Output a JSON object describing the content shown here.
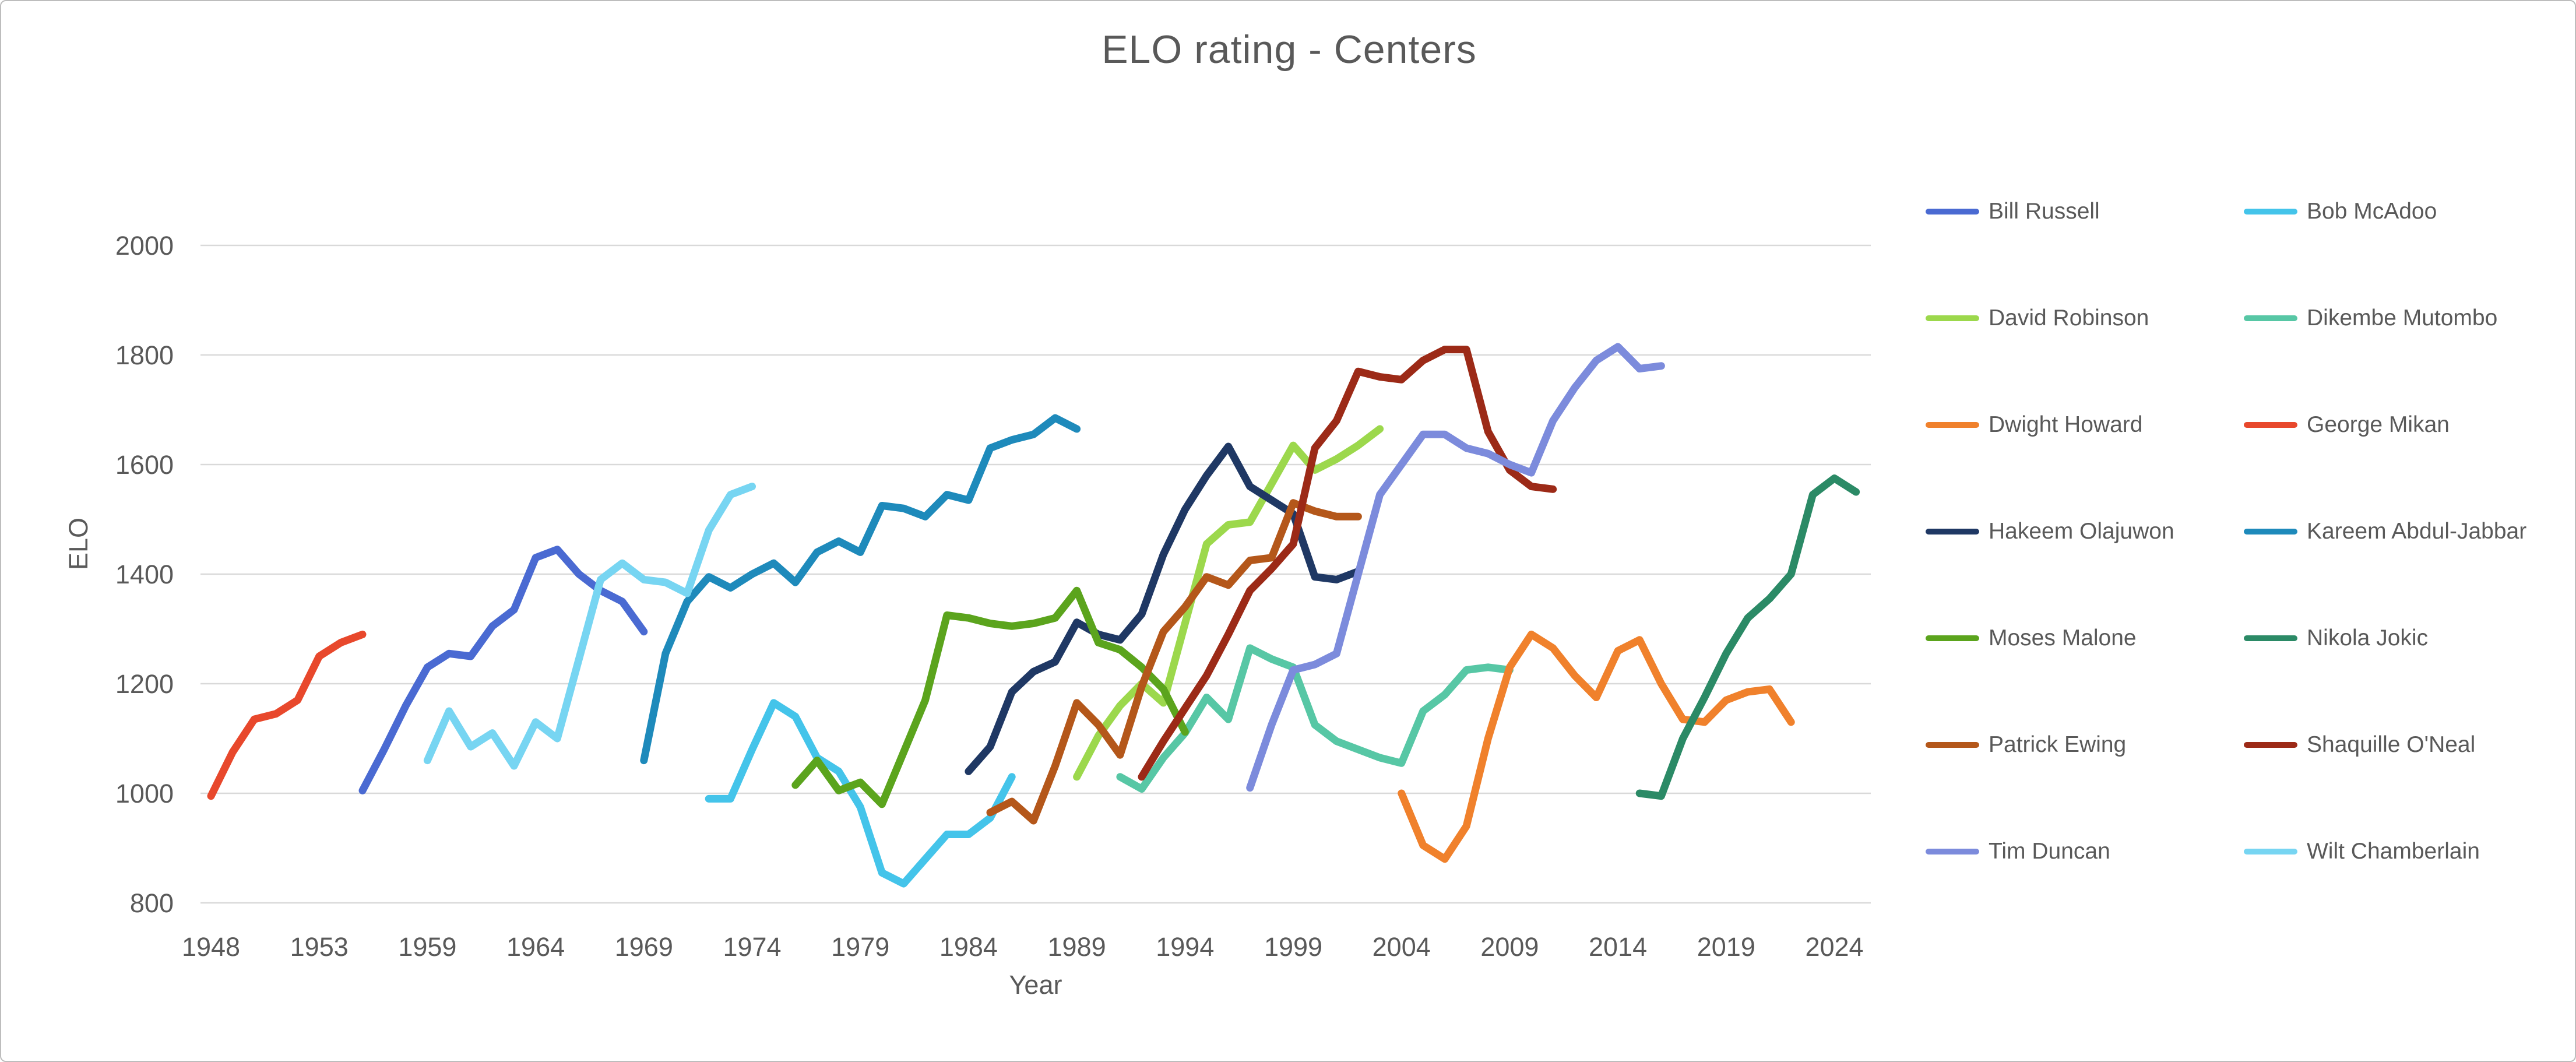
{
  "page": {
    "background": "#FFFFFF",
    "border_color": "#BDBDBD"
  },
  "chart_data": {
    "type": "line",
    "title": "ELO rating - Centers",
    "xlabel": "Year",
    "ylabel": "ELO",
    "text_color": "#595959",
    "gridline_color": "#D9D9D9",
    "grid": true,
    "legend_position": "right",
    "ylim": [
      800,
      2000
    ],
    "y_ticks": [
      800,
      1000,
      1200,
      1400,
      1600,
      1800,
      2000
    ],
    "x_tick_years": [
      1948,
      1953,
      1959,
      1964,
      1969,
      1974,
      1979,
      1984,
      1989,
      1994,
      1999,
      2004,
      2009,
      2014,
      2019,
      2024
    ],
    "x_axis_skipped_years": [
      1954
    ],
    "legend_order": [
      "Bill Russell",
      "Bob McAdoo",
      "David Robinson",
      "Dikembe Mutombo",
      "Dwight Howard",
      "George Mikan",
      "Hakeem Olajuwon",
      "Kareem Abdul-Jabbar",
      "Moses Malone",
      "Nikola Jokic",
      "Patrick Ewing",
      "Shaquille O'Neal",
      "Tim Duncan",
      "Wilt Chamberlain"
    ],
    "series": [
      {
        "name": "Bill Russell",
        "color": "#4A6AD2",
        "years": [
          1956,
          1957,
          1958,
          1959,
          1960,
          1961,
          1962,
          1963,
          1964,
          1965,
          1966,
          1967,
          1968,
          1969
        ],
        "values": [
          1005,
          1080,
          1160,
          1230,
          1255,
          1250,
          1305,
          1335,
          1430,
          1445,
          1400,
          1370,
          1350,
          1295
        ]
      },
      {
        "name": "Bob McAdoo",
        "color": "#44C4EA",
        "years": [
          1972,
          1973,
          1974,
          1975,
          1976,
          1977,
          1978,
          1979,
          1980,
          1981,
          1982,
          1983,
          1984,
          1985,
          1986
        ],
        "values": [
          990,
          990,
          1080,
          1165,
          1140,
          1065,
          1040,
          975,
          855,
          835,
          880,
          925,
          925,
          955,
          1030
        ]
      },
      {
        "name": "David Robinson",
        "color": "#9CD84C",
        "years": [
          1989,
          1990,
          1991,
          1992,
          1993,
          1994,
          1995,
          1996,
          1997,
          1998,
          1999,
          2000,
          2001,
          2002,
          2003
        ],
        "values": [
          1030,
          1105,
          1160,
          1200,
          1165,
          1310,
          1455,
          1490,
          1495,
          1565,
          1635,
          1590,
          1610,
          1635,
          1665
        ]
      },
      {
        "name": "Dikembe Mutombo",
        "color": "#57C7A5",
        "years": [
          1991,
          1992,
          1993,
          1994,
          1995,
          1996,
          1997,
          1998,
          1999,
          2000,
          2001,
          2002,
          2003,
          2004,
          2005,
          2006,
          2007,
          2008,
          2009
        ],
        "values": [
          1030,
          1008,
          1065,
          1110,
          1175,
          1135,
          1265,
          1245,
          1230,
          1125,
          1095,
          1080,
          1065,
          1055,
          1150,
          1180,
          1225,
          1230,
          1225
        ]
      },
      {
        "name": "Dwight Howard",
        "color": "#F0812C",
        "years": [
          2004,
          2005,
          2006,
          2007,
          2008,
          2009,
          2010,
          2011,
          2012,
          2013,
          2014,
          2015,
          2016,
          2017,
          2018,
          2019,
          2020,
          2021,
          2022
        ],
        "values": [
          1000,
          905,
          880,
          940,
          1100,
          1230,
          1290,
          1265,
          1215,
          1175,
          1260,
          1280,
          1200,
          1135,
          1130,
          1170,
          1185,
          1190,
          1130
        ]
      },
      {
        "name": "George Mikan",
        "color": "#E8482C",
        "years": [
          1948,
          1949,
          1950,
          1951,
          1952,
          1953,
          1955,
          1956
        ],
        "values": [
          995,
          1075,
          1135,
          1145,
          1170,
          1250,
          1275,
          1290
        ]
      },
      {
        "name": "Hakeem Olajuwon",
        "color": "#1F3864",
        "years": [
          1984,
          1985,
          1986,
          1987,
          1988,
          1989,
          1990,
          1991,
          1992,
          1993,
          1994,
          1995,
          1996,
          1997,
          1998,
          1999,
          2000,
          2001,
          2002
        ],
        "values": [
          1040,
          1085,
          1185,
          1222,
          1240,
          1312,
          1290,
          1280,
          1327,
          1436,
          1518,
          1580,
          1633,
          1560,
          1535,
          1510,
          1395,
          1390,
          1405
        ]
      },
      {
        "name": "Kareem Abdul-Jabbar",
        "color": "#1E8ABB",
        "years": [
          1969,
          1970,
          1971,
          1972,
          1973,
          1974,
          1975,
          1976,
          1977,
          1978,
          1979,
          1980,
          1981,
          1982,
          1983,
          1984,
          1985,
          1986,
          1987,
          1988,
          1989
        ],
        "values": [
          1060,
          1255,
          1350,
          1395,
          1375,
          1400,
          1420,
          1385,
          1440,
          1460,
          1440,
          1525,
          1520,
          1505,
          1545,
          1535,
          1630,
          1645,
          1655,
          1685,
          1665
        ]
      },
      {
        "name": "Moses Malone",
        "color": "#5BA41D",
        "years": [
          1976,
          1977,
          1978,
          1979,
          1980,
          1981,
          1982,
          1983,
          1984,
          1985,
          1986,
          1987,
          1988,
          1989,
          1990,
          1991,
          1992,
          1993,
          1994
        ],
        "values": [
          1015,
          1060,
          1005,
          1020,
          980,
          1075,
          1170,
          1325,
          1320,
          1310,
          1305,
          1310,
          1320,
          1370,
          1275,
          1262,
          1230,
          1190,
          1112
        ]
      },
      {
        "name": "Nikola Jokic",
        "color": "#2B8A66",
        "years": [
          2015,
          2016,
          2017,
          2018,
          2019,
          2020,
          2021,
          2022,
          2023,
          2024,
          2025
        ],
        "values": [
          1000,
          995,
          1100,
          1175,
          1255,
          1320,
          1355,
          1400,
          1545,
          1575,
          1550
        ]
      },
      {
        "name": "Patrick Ewing",
        "color": "#B4571A",
        "years": [
          1985,
          1986,
          1987,
          1988,
          1989,
          1990,
          1991,
          1992,
          1993,
          1994,
          1995,
          1996,
          1997,
          1998,
          1999,
          2000,
          2001,
          2002
        ],
        "values": [
          965,
          985,
          950,
          1050,
          1165,
          1125,
          1070,
          1195,
          1295,
          1340,
          1395,
          1380,
          1425,
          1430,
          1530,
          1515,
          1505,
          1505
        ]
      },
      {
        "name": "Shaquille O'Neal",
        "color": "#9C2A17",
        "years": [
          1992,
          1993,
          1994,
          1995,
          1996,
          1997,
          1998,
          1999,
          2000,
          2001,
          2002,
          2003,
          2004,
          2005,
          2006,
          2007,
          2008,
          2009,
          2010,
          2011
        ],
        "values": [
          1030,
          1095,
          1155,
          1215,
          1290,
          1370,
          1410,
          1455,
          1630,
          1680,
          1770,
          1760,
          1755,
          1790,
          1810,
          1810,
          1660,
          1590,
          1560,
          1555
        ]
      },
      {
        "name": "Tim Duncan",
        "color": "#7C8BDC",
        "years": [
          1997,
          1998,
          1999,
          2000,
          2001,
          2002,
          2003,
          2004,
          2005,
          2006,
          2007,
          2008,
          2009,
          2010,
          2011,
          2012,
          2013,
          2014,
          2015,
          2016
        ],
        "values": [
          1010,
          1125,
          1225,
          1235,
          1255,
          1400,
          1545,
          1600,
          1655,
          1655,
          1630,
          1620,
          1600,
          1585,
          1680,
          1740,
          1790,
          1815,
          1775,
          1780
        ]
      },
      {
        "name": "Wilt Chamberlain",
        "color": "#77D5F2",
        "years": [
          1959,
          1960,
          1961,
          1962,
          1963,
          1964,
          1965,
          1966,
          1967,
          1968,
          1969,
          1970,
          1971,
          1972,
          1973,
          1974
        ],
        "values": [
          1060,
          1150,
          1085,
          1110,
          1050,
          1130,
          1100,
          1245,
          1390,
          1420,
          1390,
          1385,
          1365,
          1480,
          1545,
          1560
        ]
      }
    ]
  }
}
